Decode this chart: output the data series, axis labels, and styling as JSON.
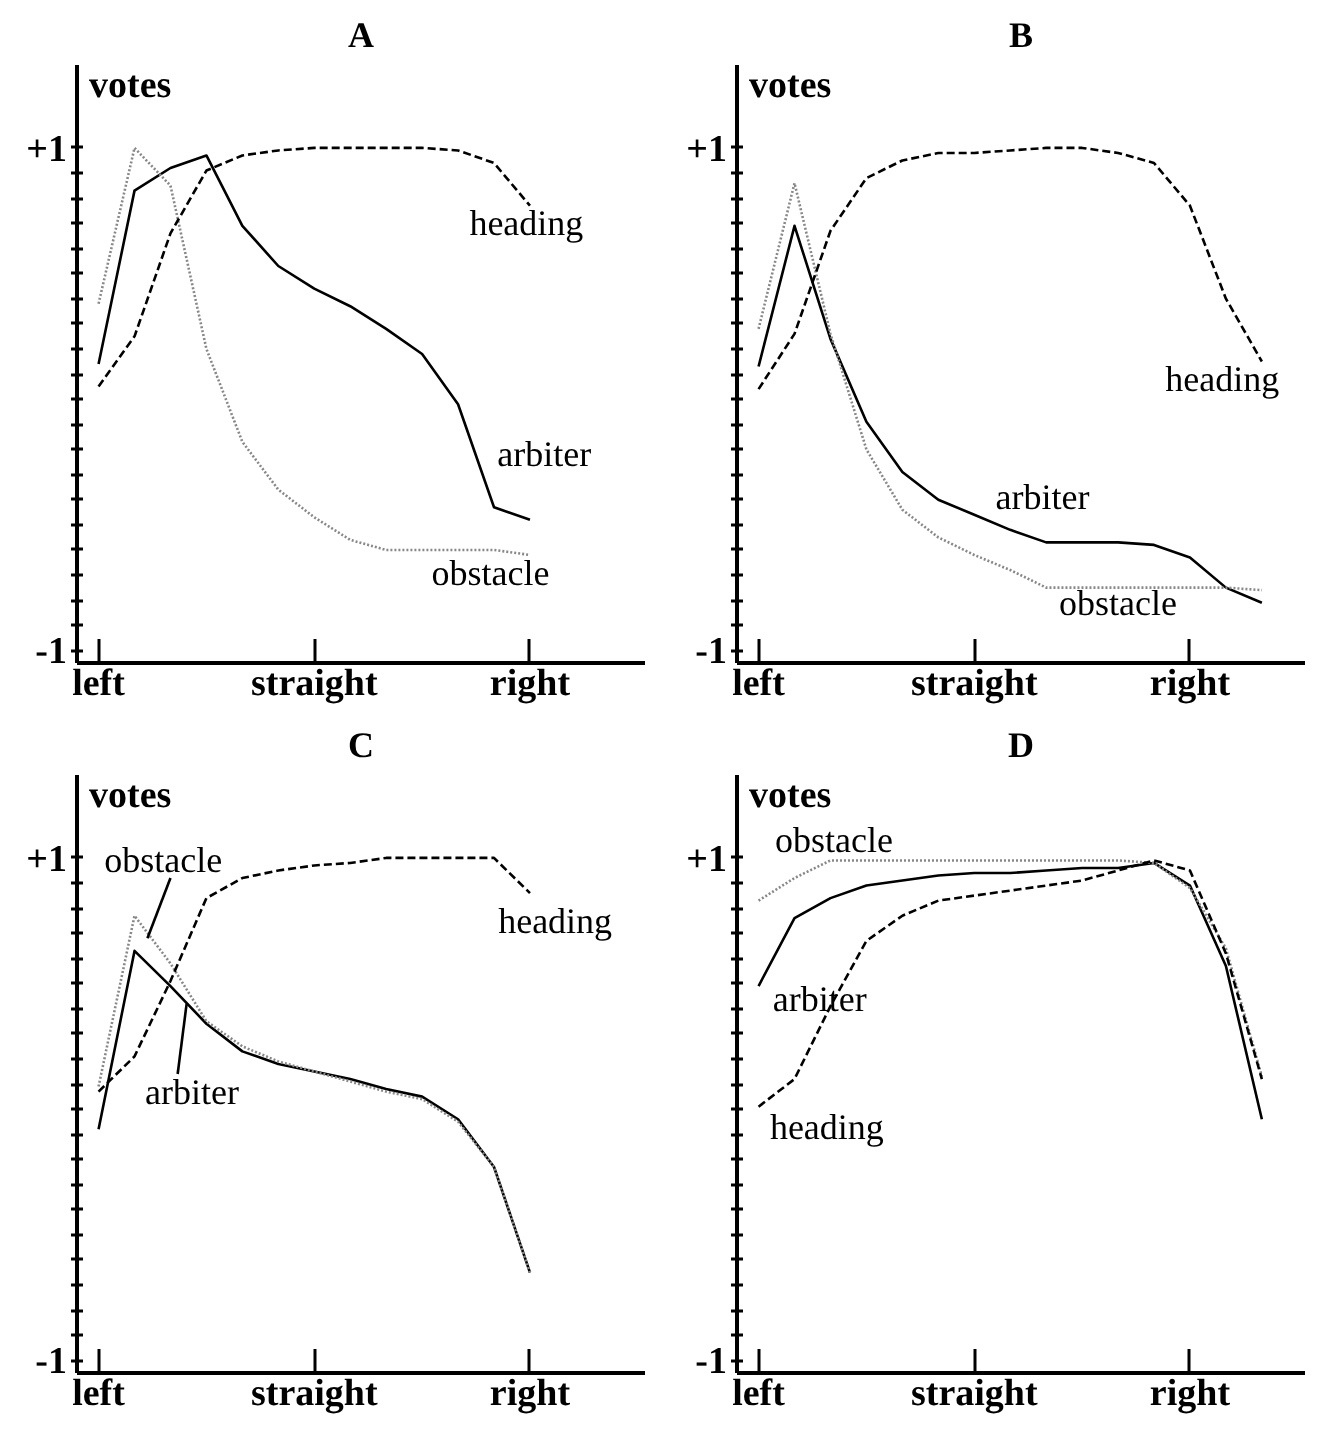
{
  "chart_data": [
    {
      "type": "line",
      "title": "A",
      "ylabel": "votes",
      "ylim": [
        -1.05,
        1.33
      ],
      "categories": [
        "left",
        null,
        null,
        null,
        null,
        null,
        "straight",
        null,
        null,
        null,
        null,
        null,
        "right"
      ],
      "yticks": [
        -1,
        {
          "value": -0.9,
          "label": null
        },
        {
          "value": -0.8,
          "label": null
        },
        {
          "value": -0.7,
          "label": null
        },
        {
          "value": -0.6,
          "label": null
        },
        {
          "value": -0.5,
          "label": null
        },
        {
          "value": -0.4,
          "label": null
        },
        {
          "value": -0.3,
          "label": null
        },
        {
          "value": -0.2,
          "label": null
        },
        {
          "value": -0.1,
          "label": null
        },
        {
          "value": 0,
          "label": null
        },
        {
          "value": 0.1,
          "label": null
        },
        {
          "value": 0.2,
          "label": null
        },
        {
          "value": 0.3,
          "label": null
        },
        {
          "value": 0.4,
          "label": null
        },
        {
          "value": 0.5,
          "label": null
        },
        {
          "value": 0.6,
          "label": null
        },
        {
          "value": 0.7,
          "label": null
        },
        {
          "value": 0.8,
          "label": null
        },
        {
          "value": 0.9,
          "label": null
        },
        {
          "value": 1,
          "label": "+1"
        }
      ],
      "series": [
        {
          "name": "arbiter",
          "color": "#000000",
          "line_style": "solid",
          "values": [
            0.14,
            0.83,
            0.92,
            0.97,
            0.69,
            0.53,
            0.44,
            0.37,
            0.28,
            0.18,
            -0.02,
            -0.43,
            -0.48
          ]
        },
        {
          "name": "obstacle",
          "color": "#888888",
          "line_style": "dotted",
          "values": [
            0.38,
            1.0,
            0.85,
            0.2,
            -0.17,
            -0.36,
            -0.47,
            -0.56,
            -0.6,
            -0.6,
            -0.6,
            -0.6,
            -0.62
          ]
        },
        {
          "name": "heading",
          "color": "#000000",
          "line_style": "dashed",
          "values": [
            0.05,
            0.25,
            0.66,
            0.91,
            0.97,
            0.99,
            1.0,
            1.0,
            1.0,
            1.0,
            0.99,
            0.94,
            0.77
          ]
        }
      ]
    },
    {
      "type": "line",
      "title": "B",
      "ylabel": "votes",
      "ylim": [
        -1.05,
        1.33
      ],
      "categories": [
        "left",
        null,
        null,
        null,
        null,
        null,
        "straight",
        null,
        null,
        null,
        null,
        null,
        "right",
        null,
        null
      ],
      "yticks": [
        -1,
        {
          "value": -0.9,
          "label": null
        },
        {
          "value": -0.8,
          "label": null
        },
        {
          "value": -0.7,
          "label": null
        },
        {
          "value": -0.6,
          "label": null
        },
        {
          "value": -0.5,
          "label": null
        },
        {
          "value": -0.4,
          "label": null
        },
        {
          "value": -0.3,
          "label": null
        },
        {
          "value": -0.2,
          "label": null
        },
        {
          "value": -0.1,
          "label": null
        },
        {
          "value": 0,
          "label": null
        },
        {
          "value": 0.1,
          "label": null
        },
        {
          "value": 0.2,
          "label": null
        },
        {
          "value": 0.3,
          "label": null
        },
        {
          "value": 0.4,
          "label": null
        },
        {
          "value": 0.5,
          "label": null
        },
        {
          "value": 0.6,
          "label": null
        },
        {
          "value": 0.7,
          "label": null
        },
        {
          "value": 0.8,
          "label": null
        },
        {
          "value": 0.9,
          "label": null
        },
        {
          "value": 1,
          "label": "+1"
        }
      ],
      "series": [
        {
          "name": "arbiter",
          "color": "#000000",
          "line_style": "solid",
          "values": [
            0.13,
            0.69,
            0.24,
            -0.09,
            -0.29,
            -0.4,
            -0.46,
            -0.52,
            -0.57,
            -0.57,
            -0.57,
            -0.58,
            -0.63,
            -0.75,
            -0.81
          ]
        },
        {
          "name": "obstacle",
          "color": "#888888",
          "line_style": "dotted",
          "values": [
            0.28,
            0.86,
            0.26,
            -0.2,
            -0.44,
            -0.55,
            -0.62,
            -0.68,
            -0.75,
            -0.75,
            -0.75,
            -0.75,
            -0.75,
            -0.75,
            -0.76
          ]
        },
        {
          "name": "heading",
          "color": "#000000",
          "line_style": "dashed",
          "values": [
            0.04,
            0.26,
            0.67,
            0.88,
            0.95,
            0.98,
            0.98,
            0.99,
            1.0,
            1.0,
            0.98,
            0.94,
            0.77,
            0.4,
            0.15
          ]
        }
      ]
    },
    {
      "type": "line",
      "title": "C",
      "ylabel": "votes",
      "ylim": [
        -1.05,
        1.33
      ],
      "categories": [
        "left",
        null,
        null,
        null,
        null,
        null,
        "straight",
        null,
        null,
        null,
        null,
        null,
        "right"
      ],
      "yticks": [
        -1,
        {
          "value": -0.9,
          "label": null
        },
        {
          "value": -0.8,
          "label": null
        },
        {
          "value": -0.7,
          "label": null
        },
        {
          "value": -0.6,
          "label": null
        },
        {
          "value": -0.5,
          "label": null
        },
        {
          "value": -0.4,
          "label": null
        },
        {
          "value": -0.3,
          "label": null
        },
        {
          "value": -0.2,
          "label": null
        },
        {
          "value": -0.1,
          "label": null
        },
        {
          "value": 0,
          "label": null
        },
        {
          "value": 0.1,
          "label": null
        },
        {
          "value": 0.2,
          "label": null
        },
        {
          "value": 0.3,
          "label": null
        },
        {
          "value": 0.4,
          "label": null
        },
        {
          "value": 0.5,
          "label": null
        },
        {
          "value": 0.6,
          "label": null
        },
        {
          "value": 0.7,
          "label": null
        },
        {
          "value": 0.8,
          "label": null
        },
        {
          "value": 0.9,
          "label": null
        },
        {
          "value": 1,
          "label": "+1"
        }
      ],
      "series": [
        {
          "name": "arbiter",
          "color": "#000000",
          "line_style": "solid",
          "values": [
            -0.08,
            0.63,
            0.49,
            0.34,
            0.23,
            0.18,
            0.15,
            0.12,
            0.08,
            0.05,
            -0.04,
            -0.23,
            -0.65
          ]
        },
        {
          "name": "obstacle",
          "color": "#888888",
          "line_style": "dotted",
          "values": [
            0.09,
            0.77,
            0.58,
            0.35,
            0.25,
            0.19,
            0.15,
            0.11,
            0.07,
            0.04,
            -0.05,
            -0.23,
            -0.65
          ]
        },
        {
          "name": "heading",
          "color": "#000000",
          "line_style": "dashed",
          "values": [
            0.07,
            0.21,
            0.51,
            0.84,
            0.92,
            0.95,
            0.97,
            0.98,
            1.0,
            1.0,
            1.0,
            1.0,
            0.86
          ]
        }
      ]
    },
    {
      "type": "line",
      "title": "D",
      "ylabel": "votes",
      "ylim": [
        -1.05,
        1.33
      ],
      "categories": [
        "left",
        null,
        null,
        null,
        null,
        null,
        "straight",
        null,
        null,
        null,
        null,
        null,
        "right",
        null,
        null
      ],
      "yticks": [
        -1,
        {
          "value": -0.9,
          "label": null
        },
        {
          "value": -0.8,
          "label": null
        },
        {
          "value": -0.7,
          "label": null
        },
        {
          "value": -0.6,
          "label": null
        },
        {
          "value": -0.5,
          "label": null
        },
        {
          "value": -0.4,
          "label": null
        },
        {
          "value": -0.3,
          "label": null
        },
        {
          "value": -0.2,
          "label": null
        },
        {
          "value": -0.1,
          "label": null
        },
        {
          "value": 0,
          "label": null
        },
        {
          "value": 0.1,
          "label": null
        },
        {
          "value": 0.2,
          "label": null
        },
        {
          "value": 0.3,
          "label": null
        },
        {
          "value": 0.4,
          "label": null
        },
        {
          "value": 0.5,
          "label": null
        },
        {
          "value": 0.6,
          "label": null
        },
        {
          "value": 0.7,
          "label": null
        },
        {
          "value": 0.8,
          "label": null
        },
        {
          "value": 0.9,
          "label": null
        },
        {
          "value": 1,
          "label": "+1"
        }
      ],
      "series": [
        {
          "name": "arbiter",
          "color": "#000000",
          "line_style": "solid",
          "values": [
            0.49,
            0.76,
            0.84,
            0.89,
            0.91,
            0.93,
            0.94,
            0.94,
            0.95,
            0.96,
            0.96,
            0.98,
            0.89,
            0.57,
            -0.04
          ]
        },
        {
          "name": "obstacle",
          "color": "#888888",
          "line_style": "dotted",
          "values": [
            0.83,
            0.92,
            0.99,
            0.99,
            0.99,
            0.99,
            0.99,
            0.99,
            0.99,
            0.99,
            0.99,
            0.98,
            0.88,
            0.64,
            0.13
          ]
        },
        {
          "name": "heading",
          "color": "#000000",
          "line_style": "dashed",
          "values": [
            0.01,
            0.12,
            0.41,
            0.67,
            0.77,
            0.83,
            0.85,
            0.87,
            0.89,
            0.91,
            0.95,
            0.99,
            0.95,
            0.62,
            0.12
          ]
        }
      ]
    }
  ]
}
